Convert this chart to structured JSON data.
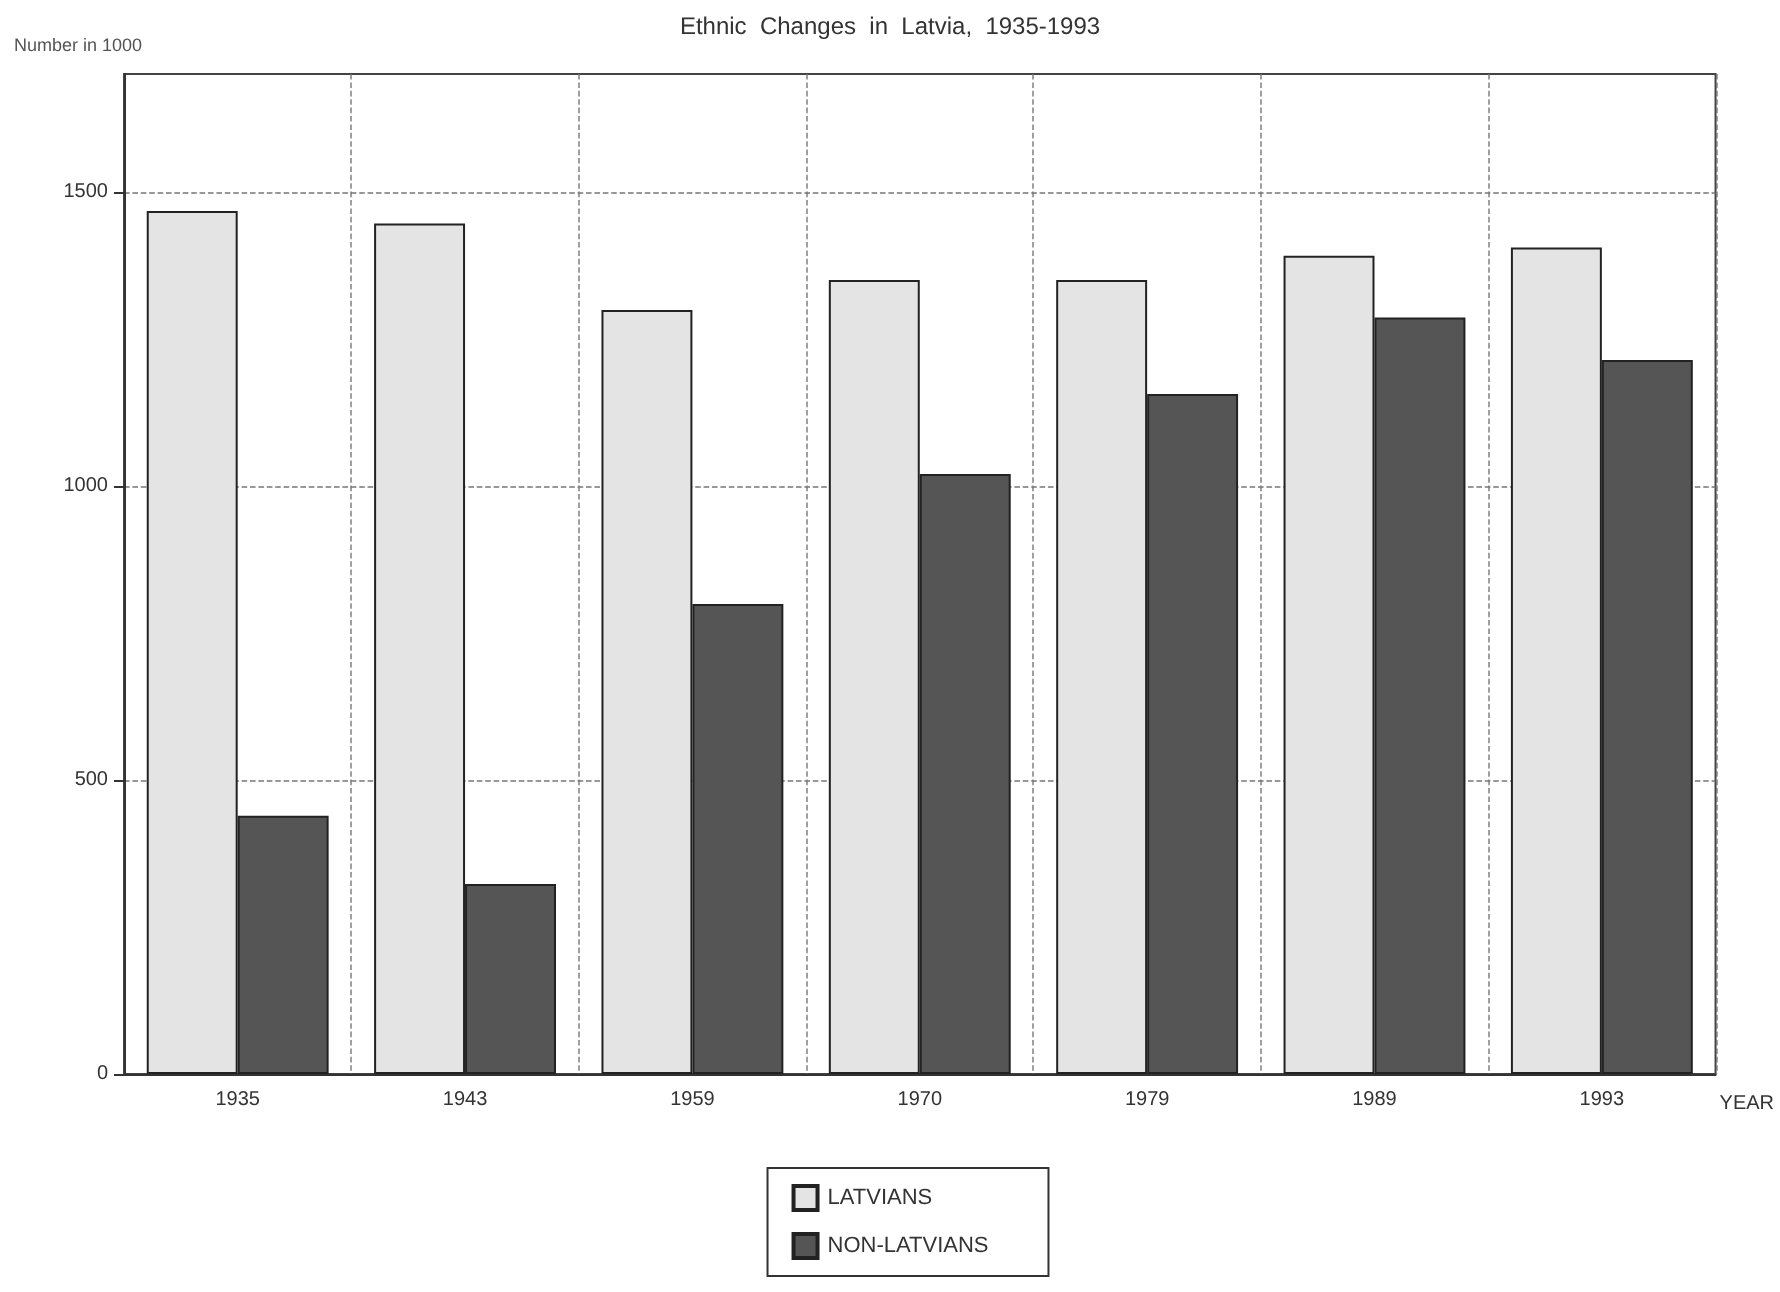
{
  "chart_data": {
    "type": "bar",
    "title": "Ethnic  Changes  in  Latvia,  1935-1993",
    "xlabel": "YEAR",
    "ylabel": "Number in 1000",
    "categories": [
      "1935",
      "1943",
      "1959",
      "1970",
      "1979",
      "1989",
      "1993"
    ],
    "series": [
      {
        "name": "LATVIANS",
        "color": "#e4e4e4",
        "values": [
          1467,
          1446,
          1299,
          1350,
          1350,
          1391,
          1405
        ]
      },
      {
        "name": "NON-LATVIANS",
        "color": "#555555",
        "values": [
          439,
          323,
          799,
          1020,
          1156,
          1286,
          1214
        ]
      }
    ],
    "ylim": [
      0,
      1700
    ],
    "yticks": [
      0,
      500,
      1000,
      1500
    ],
    "grid": true,
    "legend": "bottom"
  }
}
